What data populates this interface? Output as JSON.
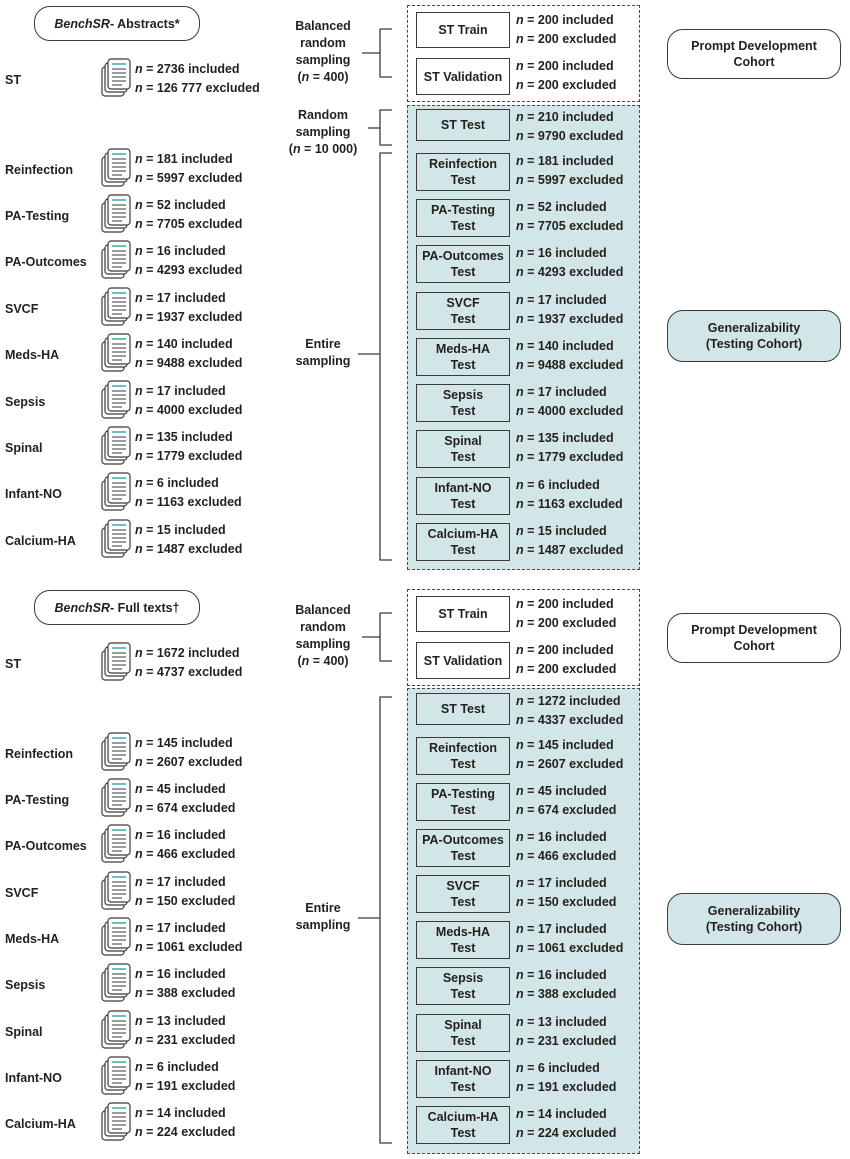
{
  "sections": [
    {
      "header_prefix": "BenchSR",
      "header_suffix": " - Abstracts*",
      "rows": [
        {
          "label": "ST",
          "included": "2736",
          "excluded": "126 777"
        },
        {
          "label": "Reinfection",
          "included": "181",
          "excluded": "5997"
        },
        {
          "label": "PA-Testing",
          "included": "52",
          "excluded": "7705"
        },
        {
          "label": "PA-Outcomes",
          "included": "16",
          "excluded": "4293"
        },
        {
          "label": "SVCF",
          "included": "17",
          "excluded": "1937"
        },
        {
          "label": "Meds-HA",
          "included": "140",
          "excluded": "9488"
        },
        {
          "label": "Sepsis",
          "included": "17",
          "excluded": "4000"
        },
        {
          "label": "Spinal",
          "included": "135",
          "excluded": "1779"
        },
        {
          "label": "Infant-NO",
          "included": "6",
          "excluded": "1163"
        },
        {
          "label": "Calcium-HA",
          "included": "15",
          "excluded": "1487"
        }
      ],
      "sampling": [
        {
          "line1": "Balanced",
          "line2": "random",
          "line3": "sampling",
          "n": "400"
        },
        {
          "line1": "Random",
          "line2": "sampling",
          "n": "10 000"
        },
        {
          "line1": "Entire",
          "line2": "sampling"
        }
      ],
      "boxes": [
        {
          "line1": "ST Train",
          "line2": "",
          "included": "200",
          "excluded": "200"
        },
        {
          "line1": "ST Validation",
          "line2": "",
          "included": "200",
          "excluded": "200"
        },
        {
          "line1": "ST Test",
          "line2": "",
          "included": "210",
          "excluded": "9790"
        },
        {
          "line1": "Reinfection",
          "line2": "Test",
          "included": "181",
          "excluded": "5997"
        },
        {
          "line1": "PA-Testing",
          "line2": "Test",
          "included": "52",
          "excluded": "7705"
        },
        {
          "line1": "PA-Outcomes",
          "line2": "Test",
          "included": "16",
          "excluded": "4293"
        },
        {
          "line1": "SVCF",
          "line2": "Test",
          "included": "17",
          "excluded": "1937"
        },
        {
          "line1": "Meds-HA",
          "line2": "Test",
          "included": "140",
          "excluded": "9488"
        },
        {
          "line1": "Sepsis",
          "line2": "Test",
          "included": "17",
          "excluded": "4000"
        },
        {
          "line1": "Spinal",
          "line2": "Test",
          "included": "135",
          "excluded": "1779"
        },
        {
          "line1": "Infant-NO",
          "line2": "Test",
          "included": "6",
          "excluded": "1163"
        },
        {
          "line1": "Calcium-HA",
          "line2": "Test",
          "included": "15",
          "excluded": "1487"
        }
      ],
      "cohorts": [
        {
          "line1": "Prompt Development",
          "line2": "Cohort"
        },
        {
          "line1": "Generalizability",
          "line2": "(Testing Cohort)"
        }
      ]
    },
    {
      "header_prefix": "BenchSR",
      "header_suffix": " - Full texts†",
      "rows": [
        {
          "label": "ST",
          "included": "1672",
          "excluded": "4737"
        },
        {
          "label": "Reinfection",
          "included": "145",
          "excluded": "2607"
        },
        {
          "label": "PA-Testing",
          "included": "45",
          "excluded": "674"
        },
        {
          "label": "PA-Outcomes",
          "included": "16",
          "excluded": "466"
        },
        {
          "label": "SVCF",
          "included": "17",
          "excluded": "150"
        },
        {
          "label": "Meds-HA",
          "included": "17",
          "excluded": "1061"
        },
        {
          "label": "Sepsis",
          "included": "16",
          "excluded": "388"
        },
        {
          "label": "Spinal",
          "included": "13",
          "excluded": "231"
        },
        {
          "label": "Infant-NO",
          "included": "6",
          "excluded": "191"
        },
        {
          "label": "Calcium-HA",
          "included": "14",
          "excluded": "224"
        }
      ],
      "sampling": [
        {
          "line1": "Balanced",
          "line2": "random",
          "line3": "sampling",
          "n": "400"
        },
        {
          "line1": "Entire",
          "line2": "sampling"
        }
      ],
      "boxes": [
        {
          "line1": "ST Train",
          "line2": "",
          "included": "200",
          "excluded": "200"
        },
        {
          "line1": "ST Validation",
          "line2": "",
          "included": "200",
          "excluded": "200"
        },
        {
          "line1": "ST Test",
          "line2": "",
          "included": "1272",
          "excluded": "4337"
        },
        {
          "line1": "Reinfection",
          "line2": "Test",
          "included": "145",
          "excluded": "2607"
        },
        {
          "line1": "PA-Testing",
          "line2": "Test",
          "included": "45",
          "excluded": "674"
        },
        {
          "line1": "PA-Outcomes",
          "line2": "Test",
          "included": "16",
          "excluded": "466"
        },
        {
          "line1": "SVCF",
          "line2": "Test",
          "included": "17",
          "excluded": "150"
        },
        {
          "line1": "Meds-HA",
          "line2": "Test",
          "included": "17",
          "excluded": "1061"
        },
        {
          "line1": "Sepsis",
          "line2": "Test",
          "included": "16",
          "excluded": "388"
        },
        {
          "line1": "Spinal",
          "line2": "Test",
          "included": "13",
          "excluded": "231"
        },
        {
          "line1": "Infant-NO",
          "line2": "Test",
          "included": "6",
          "excluded": "191"
        },
        {
          "line1": "Calcium-HA",
          "line2": "Test",
          "included": "14",
          "excluded": "224"
        }
      ],
      "cohorts": [
        {
          "line1": "Prompt Development",
          "line2": "Cohort"
        },
        {
          "line1": "Generalizability",
          "line2": "(Testing Cohort)"
        }
      ]
    }
  ],
  "labels": {
    "n": "n",
    "included": " included",
    "excluded": " excluded"
  },
  "colors": {
    "teal_fill": "#d3e6e7",
    "icon_accent": "#3fb5b0",
    "line": "#3a3a3a"
  },
  "icons": {
    "document": "document-stack-icon"
  }
}
